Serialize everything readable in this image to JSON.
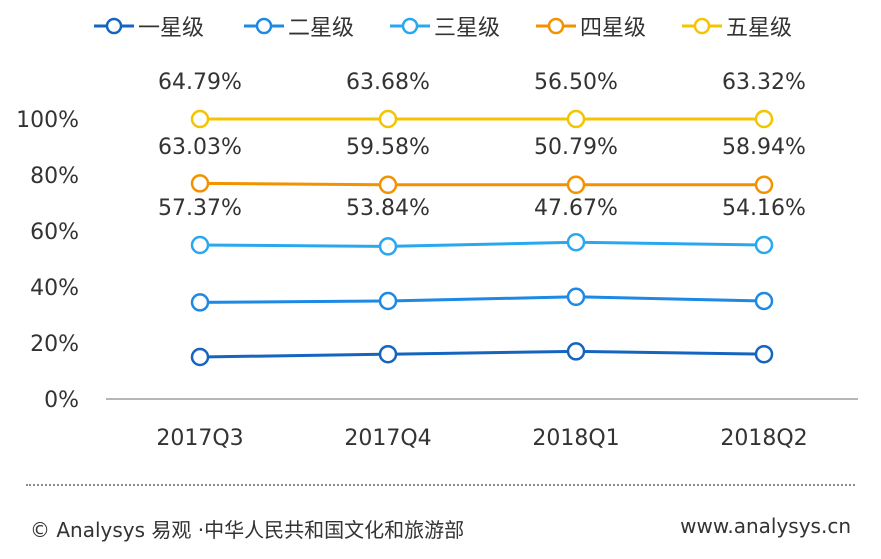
{
  "chart_data": {
    "type": "line",
    "categories": [
      "2017Q3",
      "2017Q4",
      "2018Q1",
      "2018Q2"
    ],
    "series": [
      {
        "name": "一星级",
        "color": "#1565c0",
        "values": [
          15,
          16,
          17,
          16
        ]
      },
      {
        "name": "二星级",
        "color": "#1e88e5",
        "values": [
          34.5,
          35,
          36.5,
          35
        ]
      },
      {
        "name": "三星级",
        "color": "#29a8f0",
        "values": [
          55,
          54.5,
          56,
          55
        ]
      },
      {
        "name": "四星级",
        "color": "#f39200",
        "values": [
          77,
          76.5,
          76.5,
          76.5
        ]
      },
      {
        "name": "五星级",
        "color": "#f5c400",
        "values": [
          100,
          100,
          100,
          100
        ]
      }
    ],
    "data_labels": [
      {
        "row": "top",
        "values": [
          "64.79%",
          "63.68%",
          "56.50%",
          "63.32%"
        ]
      },
      {
        "row": "middle",
        "values": [
          "63.03%",
          "59.58%",
          "50.79%",
          "58.94%"
        ]
      },
      {
        "row": "bottom",
        "values": [
          "57.37%",
          "53.84%",
          "47.67%",
          "54.16%"
        ]
      }
    ],
    "ylim": [
      0,
      100
    ],
    "yticks": [
      0,
      20,
      40,
      60,
      80,
      100
    ],
    "ytick_labels": [
      "0%",
      "20%",
      "40%",
      "60%",
      "80%",
      "100%"
    ],
    "grid": false,
    "legend_position": "top",
    "title": "",
    "xlabel": "",
    "ylabel": ""
  },
  "footer": {
    "copyright": "© Analysys 易观 ·中华人民共和国文化和旅游部",
    "website": "www.analysys.cn"
  }
}
